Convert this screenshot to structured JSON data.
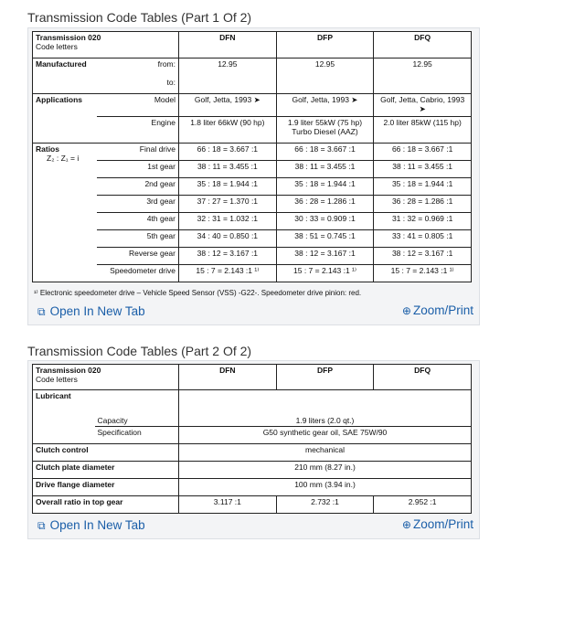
{
  "part1": {
    "title": "Transmission Code Tables (Part 1 Of 2)",
    "header": {
      "l1": "Transmission 020",
      "l2": "Code letters",
      "cols": [
        "DFN",
        "DFP",
        "DFQ"
      ]
    },
    "manufactured": {
      "label": "Manufactured",
      "from": "from:",
      "to": "to:",
      "values": [
        "12.95",
        "12.95",
        "12.95"
      ]
    },
    "applications": {
      "label": "Applications",
      "model": "Model",
      "engine": "Engine",
      "models": [
        "Golf, Jetta, 1993 ➤",
        "Golf, Jetta, 1993 ➤",
        "Golf, Jetta, Cabrio, 1993 ➤"
      ],
      "engines": [
        "1.8 liter 66kW (90 hp)",
        "1.9 liter 55kW (75 hp) Turbo Diesel (AAZ)",
        "2.0 liter 85kW (115 hp)"
      ]
    },
    "ratios": {
      "label": "Ratios",
      "formula": "Z₂ : Z₁ = i",
      "rows": [
        {
          "label": "Final drive",
          "v": [
            "66 : 18 = 3.667 :1",
            "66 : 18 = 3.667 :1",
            "66 : 18 = 3.667 :1"
          ]
        },
        {
          "label": "1st gear",
          "v": [
            "38 : 11 = 3.455 :1",
            "38 : 11 = 3.455 :1",
            "38 : 11 = 3.455 :1"
          ]
        },
        {
          "label": "2nd gear",
          "v": [
            "35 : 18 = 1.944 :1",
            "35 : 18 = 1.944 :1",
            "35 : 18 = 1.944 :1"
          ]
        },
        {
          "label": "3rd gear",
          "v": [
            "37 : 27 = 1.370 :1",
            "36 : 28 = 1.286 :1",
            "36 : 28 = 1.286 :1"
          ]
        },
        {
          "label": "4th gear",
          "v": [
            "32 : 31 = 1.032 :1",
            "30 : 33 = 0.909 :1",
            "31 : 32 = 0.969 :1"
          ]
        },
        {
          "label": "5th gear",
          "v": [
            "34 : 40 = 0.850 :1",
            "38 : 51 = 0.745 :1",
            "33 : 41 = 0.805 :1"
          ]
        },
        {
          "label": "Reverse gear",
          "v": [
            "38 : 12 = 3.167 :1",
            "38 : 12 = 3.167 :1",
            "38 : 12 = 3.167 :1"
          ]
        },
        {
          "label": "Speedometer drive",
          "v": [
            "15 : 7 = 2.143 :1 ¹⁾",
            "15 : 7 = 2.143 :1 ¹⁾",
            "15 : 7 = 2.143 :1 ¹⁾"
          ]
        }
      ]
    },
    "footnote": "¹⁾ Electronic speedometer drive – Vehicle Speed Sensor (VSS) -G22-.  Speedometer drive pinion:  red.",
    "open_tab": "Open In New Tab",
    "zoom": "Zoom/Print"
  },
  "part2": {
    "title": "Transmission Code Tables (Part 2 Of 2)",
    "header": {
      "l1": "Transmission 020",
      "l2": "Code letters",
      "cols": [
        "DFN",
        "DFP",
        "DFQ"
      ]
    },
    "lubricant": "Lubricant",
    "capacity": "Capacity",
    "capacity_v": "1.9 liters (2.0 qt.)",
    "spec": "Specification",
    "spec_v": "G50 synthetic gear oil, SAE 75W/90",
    "clutch_control": "Clutch control",
    "clutch_control_v": "mechanical",
    "clutch_plate": "Clutch plate diameter",
    "clutch_plate_v": "210 mm (8.27 in.)",
    "drive_flange": "Drive flange diameter",
    "drive_flange_v": "100 mm (3.94 in.)",
    "overall": "Overall ratio in top gear",
    "overall_v": [
      "3.117 :1",
      "2.732 :1",
      "2.952 :1"
    ],
    "open_tab": "Open In New Tab",
    "zoom": "Zoom/Print"
  },
  "colors": {
    "link": "#1a5ea8"
  }
}
